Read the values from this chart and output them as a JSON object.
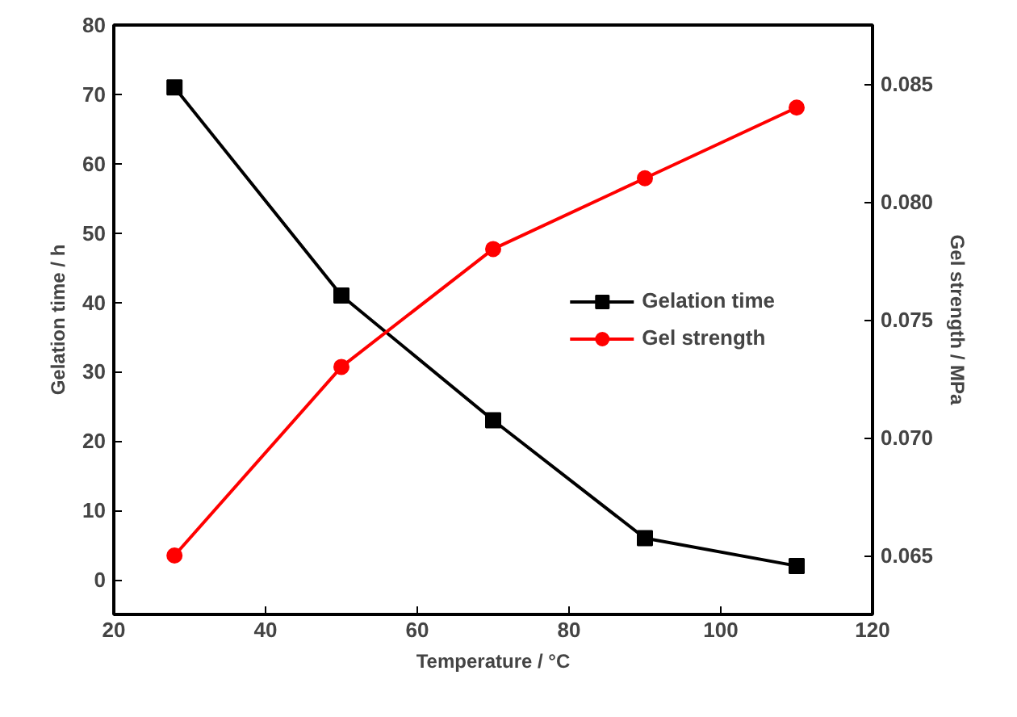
{
  "chart_data": {
    "type": "line",
    "xlabel": "Temperature / °C",
    "ylabel": "Gelation time / h",
    "y2label": "Gel strength / MPa",
    "x": [
      28,
      50,
      70,
      90,
      110
    ],
    "series": [
      {
        "name": "Gelation time",
        "color": "#000000",
        "marker": "square",
        "values": [
          71,
          41,
          23,
          6,
          2
        ]
      },
      {
        "name": "Gel strength",
        "color": "#ff0000",
        "marker": "circle",
        "axis": "y2",
        "values": [
          0.065,
          0.073,
          0.078,
          0.081,
          0.084
        ]
      }
    ],
    "xlim": [
      20,
      120
    ],
    "xticks": [
      20,
      40,
      60,
      80,
      100,
      120
    ],
    "ylim": [
      -5,
      80
    ],
    "yticks": [
      0,
      10,
      20,
      30,
      40,
      50,
      60,
      70,
      80
    ],
    "y2lim": [
      0.0625,
      0.0875
    ],
    "y2ticks": [
      {
        "value": 0.065,
        "label": "0.065"
      },
      {
        "value": 0.07,
        "label": "0.070"
      },
      {
        "value": 0.075,
        "label": "0.075"
      },
      {
        "value": 0.08,
        "label": "0.080"
      },
      {
        "value": 0.085,
        "label": "0.085"
      }
    ],
    "grid": false,
    "legend": "right",
    "line_style": "solid"
  }
}
